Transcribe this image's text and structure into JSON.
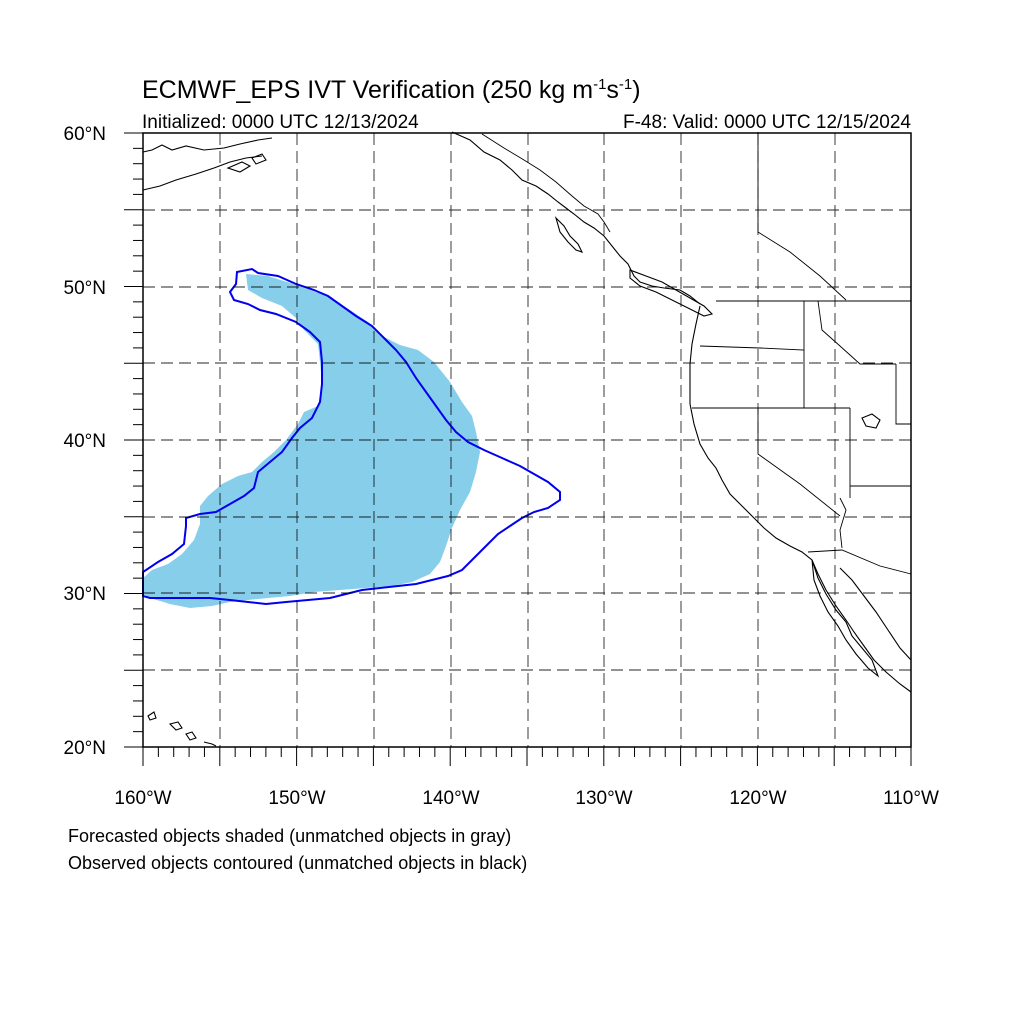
{
  "title": {
    "main": "ECMWF_EPS IVT Verification (250 kg m",
    "sup1": "-1",
    "mid": "s",
    "sup2": "-1",
    "end": ")"
  },
  "initialized": "Initialized: 0000 UTC 12/13/2024",
  "valid": "F-48: Valid: 0000 UTC 12/15/2024",
  "footnotes": [
    "Forecasted objects shaded (unmatched objects in gray)",
    "Observed objects contoured (unmatched objects in black)"
  ],
  "map": {
    "lon_range": [
      -160,
      -110
    ],
    "lat_range": [
      20,
      60
    ],
    "lon_labels": [
      "160°W",
      "150°W",
      "140°W",
      "130°W",
      "120°W",
      "110°W"
    ],
    "lat_labels": [
      "20°N",
      "30°N",
      "40°N",
      "50°N",
      "60°N"
    ],
    "colors": {
      "forecast_fill": "#87ceeb",
      "observed_contour": "#0000ee",
      "grid": "#000000",
      "coast": "#000000"
    }
  }
}
